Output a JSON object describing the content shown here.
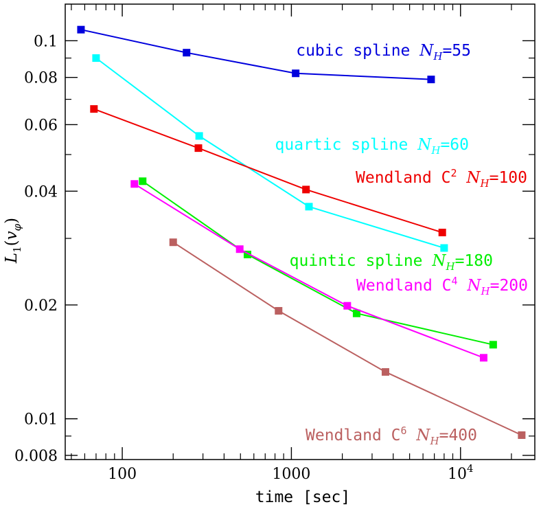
{
  "chart_data": {
    "type": "line",
    "xlabel": "time [sec]",
    "ylabel": {
      "main": "L",
      "sub": "1",
      "arg": "v",
      "argsub": "φ"
    },
    "x_scale": "log",
    "y_scale": "log",
    "xlim": [
      46,
      27500
    ],
    "ylim": [
      0.0078,
      0.125
    ],
    "x_ticks": [
      {
        "value": 100,
        "label": "100"
      },
      {
        "value": 1000,
        "label": "1000"
      },
      {
        "value": 10000,
        "label": "10",
        "sup": "4"
      }
    ],
    "y_ticks": [
      {
        "value": 0.008,
        "label": "0.008"
      },
      {
        "value": 0.01,
        "label": "0.01"
      },
      {
        "value": 0.02,
        "label": "0.02"
      },
      {
        "value": 0.04,
        "label": "0.04"
      },
      {
        "value": 0.06,
        "label": "0.06"
      },
      {
        "value": 0.08,
        "label": "0.08"
      },
      {
        "value": 0.1,
        "label": "0.1"
      }
    ],
    "grid": false,
    "series": [
      {
        "name": "cubic spline",
        "label": {
          "prefix": "cubic spline ",
          "nh": "55"
        },
        "color": "#0000dd",
        "x": [
          57,
          240,
          1060,
          6700
        ],
        "y": [
          0.107,
          0.093,
          0.082,
          0.079
        ]
      },
      {
        "name": "quartic spline",
        "label": {
          "prefix": "quartic spline ",
          "nh": "60"
        },
        "color": "#00ffff",
        "x": [
          70,
          285,
          1270,
          8000
        ],
        "y": [
          0.09,
          0.056,
          0.0364,
          0.0283
        ]
      },
      {
        "name": "Wendland C2",
        "label": {
          "prefix": "Wendland C",
          "sup": "2",
          "nh": "100"
        },
        "color": "#ee0000",
        "x": [
          68,
          282,
          1220,
          7800
        ],
        "y": [
          0.066,
          0.052,
          0.0404,
          0.0311
        ]
      },
      {
        "name": "quintic spline",
        "label": {
          "prefix": "quintic spline ",
          "nh": "180"
        },
        "color": "#00ee00",
        "x": [
          132,
          550,
          2430,
          15600
        ],
        "y": [
          0.0425,
          0.0272,
          0.019,
          0.0157
        ]
      },
      {
        "name": "Wendland C4",
        "label": {
          "prefix": "Wendland C",
          "sup": "4",
          "nh": "200"
        },
        "color": "#ff00ff",
        "x": [
          118,
          495,
          2140,
          13700
        ],
        "y": [
          0.0418,
          0.0281,
          0.0199,
          0.0145
        ]
      },
      {
        "name": "Wendland C6",
        "label": {
          "prefix": "Wendland C",
          "sup": "6",
          "nh": "400"
        },
        "color": "#bb6060",
        "x": [
          200,
          840,
          3600,
          23000
        ],
        "y": [
          0.0293,
          0.0193,
          0.0133,
          0.00905
        ]
      }
    ]
  }
}
